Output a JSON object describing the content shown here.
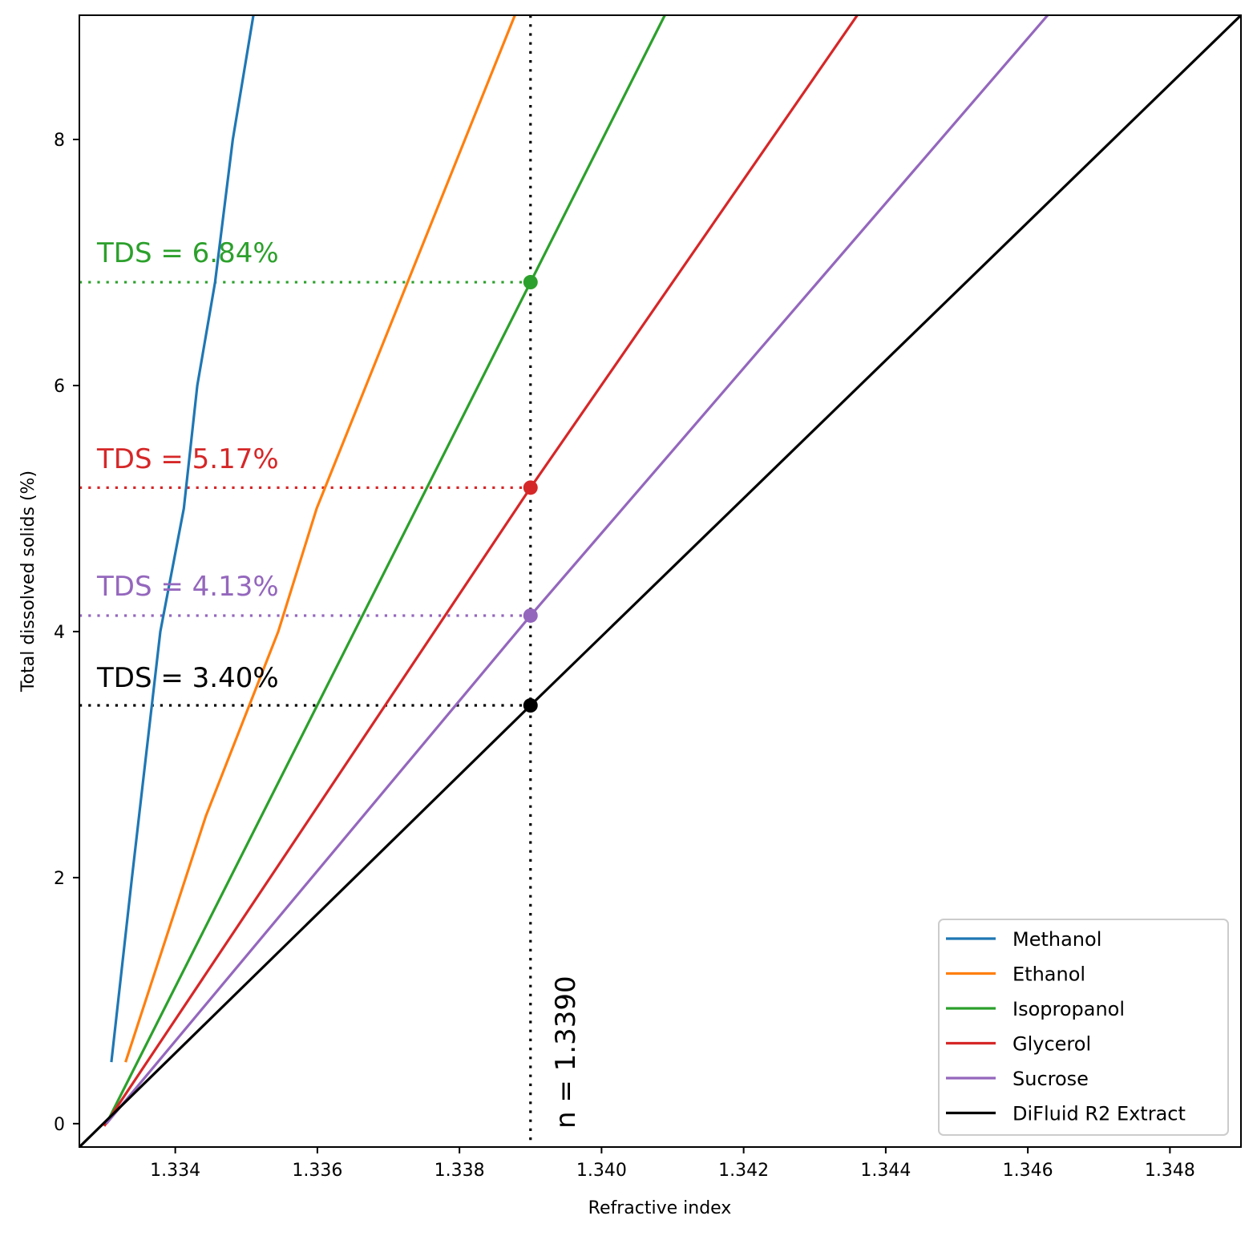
{
  "chart_data": {
    "type": "line",
    "title": "",
    "xlabel": "Refractive index",
    "ylabel": "Total dissolved solids (%)",
    "xlim": [
      1.33265,
      1.349
    ],
    "ylim": [
      -0.19,
      9.01
    ],
    "grid": false,
    "legend_position": "lower right",
    "x_ticks": [
      1.334,
      1.336,
      1.338,
      1.34,
      1.342,
      1.344,
      1.346,
      1.348
    ],
    "x_tick_labels": [
      "1.334",
      "1.336",
      "1.338",
      "1.340",
      "1.342",
      "1.344",
      "1.346",
      "1.348"
    ],
    "y_ticks": [
      0,
      2,
      4,
      6,
      8
    ],
    "y_tick_labels": [
      "0",
      "2",
      "4",
      "6",
      "8"
    ],
    "series": [
      {
        "name": "Methanol",
        "color": "#1f77b4",
        "x": [
          1.3331,
          1.33339,
          1.33379,
          1.33412,
          1.33431,
          1.33456,
          1.33481,
          1.3351
        ],
        "y": [
          0.5,
          2.0,
          4.0,
          5.0,
          6.0,
          6.84,
          8.0,
          9.01
        ]
      },
      {
        "name": "Ethanol",
        "color": "#ff7f0e",
        "x": [
          1.3333,
          1.33443,
          1.33545,
          1.33599,
          1.33878
        ],
        "y": [
          0.5,
          2.5,
          4.0,
          5.0,
          9.01
        ]
      },
      {
        "name": "Isopropanol",
        "color": "#2ca02c",
        "x": [
          1.33303,
          1.339,
          1.34089
        ],
        "y": [
          0.0,
          6.84,
          9.01
        ]
      },
      {
        "name": "Glycerol",
        "color": "#d62728",
        "x": [
          1.333,
          1.339,
          1.3436
        ],
        "y": [
          -0.02,
          5.17,
          9.01
        ]
      },
      {
        "name": "Sucrose",
        "color": "#9467bd",
        "x": [
          1.33303,
          1.339,
          1.34628
        ],
        "y": [
          0.0,
          4.13,
          9.01
        ]
      },
      {
        "name": "DiFluid R2 Extract",
        "color": "#000000",
        "x": [
          1.33265,
          1.339,
          1.349
        ],
        "y": [
          -0.19,
          3.4,
          9.01
        ]
      }
    ],
    "measurement": {
      "n": 1.339,
      "label": "n = 1.3390",
      "points": [
        {
          "series": "Isopropanol",
          "tds": 6.84,
          "label": "TDS = 6.84%",
          "color": "#2ca02c"
        },
        {
          "series": "Glycerol",
          "tds": 5.17,
          "label": "TDS = 5.17%",
          "color": "#d62728"
        },
        {
          "series": "Sucrose",
          "tds": 4.13,
          "label": "TDS = 4.13%",
          "color": "#9467bd"
        },
        {
          "series": "DiFluid R2 Extract",
          "tds": 3.4,
          "label": "TDS = 3.40%",
          "color": "#000000"
        }
      ]
    }
  },
  "labels": {
    "xlabel": "Refractive index",
    "ylabel": "Total dissolved solids (%)",
    "n_label": "n = 1.3390",
    "tds_isopropanol": "TDS = 6.84%",
    "tds_glycerol": "TDS = 5.17%",
    "tds_sucrose": "TDS = 4.13%",
    "tds_difluid": "TDS = 3.40%"
  },
  "legend": {
    "items": [
      {
        "label": "Methanol",
        "color": "#1f77b4"
      },
      {
        "label": "Ethanol",
        "color": "#ff7f0e"
      },
      {
        "label": "Isopropanol",
        "color": "#2ca02c"
      },
      {
        "label": "Glycerol",
        "color": "#d62728"
      },
      {
        "label": "Sucrose",
        "color": "#9467bd"
      },
      {
        "label": "DiFluid R2 Extract",
        "color": "#000000"
      }
    ]
  }
}
